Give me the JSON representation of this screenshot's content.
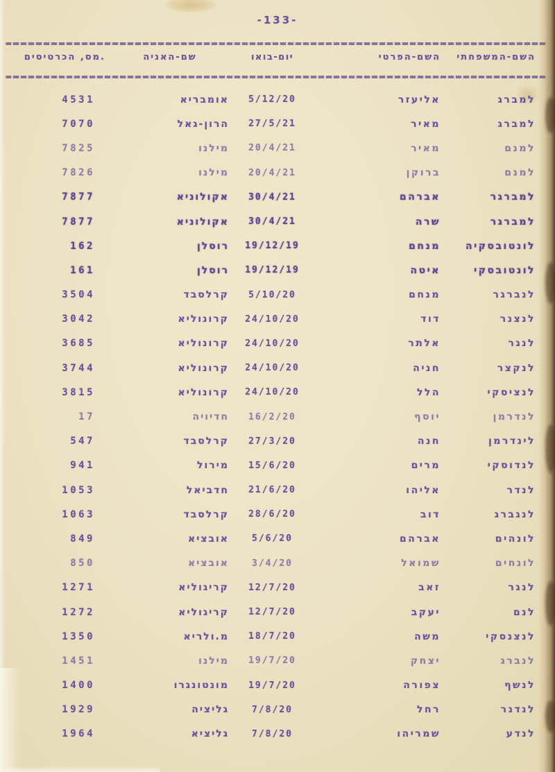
{
  "page": {
    "number_label": "-133-"
  },
  "colors": {
    "ink": "#6a54a0",
    "paper": "#ebe1c1"
  },
  "table": {
    "headers": [
      {
        "key": "family_name",
        "label": "השם-המשפחתי"
      },
      {
        "key": "first_name",
        "label": "השם-הפרטי"
      },
      {
        "key": "arrival_date",
        "label": "יום-בואו"
      },
      {
        "key": "ship_name",
        "label": "שם-האניה"
      },
      {
        "key": "card_number",
        "label": "מס, הכרטיסים."
      }
    ],
    "rows": [
      {
        "family": "למברג",
        "first": "אליעזר",
        "date": "5/12/20",
        "ship": "אומבריא",
        "card": "4531",
        "ink": "normal"
      },
      {
        "family": "למברג",
        "first": "מאיר",
        "date": "27/5/21",
        "ship": "הרון-גאל",
        "card": "7070",
        "ink": "normal"
      },
      {
        "family": "למנם",
        "first": "מאיר",
        "date": "20/4/21",
        "ship": "מילנו",
        "card": "7825",
        "ink": "light"
      },
      {
        "family": "למנם",
        "first": "ברוקן",
        "date": "20/4/21",
        "ship": "מילנו",
        "card": "7826",
        "ink": "light"
      },
      {
        "family": "למברגר",
        "first": "אברהם",
        "date": "30/4/21",
        "ship": "אקולוניא",
        "card": "7877",
        "ink": "heavy"
      },
      {
        "family": "למברגר",
        "first": "שרה",
        "date": "30/4/21",
        "ship": "אקולוניא",
        "card": "7877",
        "ink": "heavy"
      },
      {
        "family": "לונטובסקיה",
        "first": "מנחם",
        "date": "19/12/19",
        "ship": "רוסלן",
        "card": "162",
        "ink": "heavy"
      },
      {
        "family": "לונטובסקי",
        "first": "איטה",
        "date": "19/12/19",
        "ship": "רוסלן",
        "card": "161",
        "ink": "heavy"
      },
      {
        "family": "לנברגר",
        "first": "מנחם",
        "date": "5/10/20",
        "ship": "קרלסבד",
        "card": "3504",
        "ink": "normal"
      },
      {
        "family": "לנצנר",
        "first": "דוד",
        "date": "24/10/20",
        "ship": "קרונוליא",
        "card": "3042",
        "ink": "normal"
      },
      {
        "family": "לנגר",
        "first": "אלתר",
        "date": "24/10/20",
        "ship": "קרונוליא",
        "card": "3685",
        "ink": "normal"
      },
      {
        "family": "לנקצר",
        "first": "חניה",
        "date": "24/10/20",
        "ship": "קרונוליא",
        "card": "3744",
        "ink": "normal"
      },
      {
        "family": "לנציסקי",
        "first": "הלל",
        "date": "24/10/20",
        "ship": "קרונוליא",
        "card": "3815",
        "ink": "normal"
      },
      {
        "family": "לנדרמן",
        "first": "יוסף",
        "date": "16/2/20",
        "ship": "חדיויה",
        "card": "17",
        "ink": "light"
      },
      {
        "family": "לינדרמן",
        "first": "חנה",
        "date": "27/3/20",
        "ship": "קרלסבד",
        "card": "547",
        "ink": "normal"
      },
      {
        "family": "לנדוסקי",
        "first": "מרים",
        "date": "15/6/20",
        "ship": "מירול",
        "card": "941",
        "ink": "normal"
      },
      {
        "family": "לנדר",
        "first": "אליהו",
        "date": "21/6/20",
        "ship": "חדביאל",
        "card": "1053",
        "ink": "normal"
      },
      {
        "family": "לנגברג",
        "first": "דוב",
        "date": "28/6/20",
        "ship": "קרלסבד",
        "card": "1063",
        "ink": "normal"
      },
      {
        "family": "לונהים",
        "first": "אברהם",
        "date": "5/6/20",
        "ship": "אובציא",
        "card": "849",
        "ink": "normal"
      },
      {
        "family": "לונחים",
        "first": "שמואל",
        "date": "3/4/20",
        "ship": "אובציא",
        "card": "850",
        "ink": "light"
      },
      {
        "family": "לנגר",
        "first": "זאב",
        "date": "12/7/20",
        "ship": "קריגוליא",
        "card": "1271",
        "ink": "normal"
      },
      {
        "family": "לנם",
        "first": "יעקב",
        "date": "12/7/20",
        "ship": "קריגוליא",
        "card": "1272",
        "ink": "normal"
      },
      {
        "family": "לנצנסקי",
        "first": "משה",
        "date": "18/7/20",
        "ship": "מ.ולריא",
        "card": "1350",
        "ink": "normal"
      },
      {
        "family": "לנברג",
        "first": "יצחק",
        "date": "19/7/20",
        "ship": "מילנו",
        "card": "1451",
        "ink": "light"
      },
      {
        "family": "לנשף",
        "first": "צפורה",
        "date": "19/7/20",
        "ship": "מונטונגרו",
        "card": "1400",
        "ink": "normal"
      },
      {
        "family": "לנדנר",
        "first": "רחל",
        "date": "7/8/20",
        "ship": "גליציה",
        "card": "1929",
        "ink": "normal"
      },
      {
        "family": "לנדע",
        "first": "שמריהו",
        "date": "7/8/20",
        "ship": "גליציא",
        "card": "1964",
        "ink": "normal"
      }
    ]
  }
}
